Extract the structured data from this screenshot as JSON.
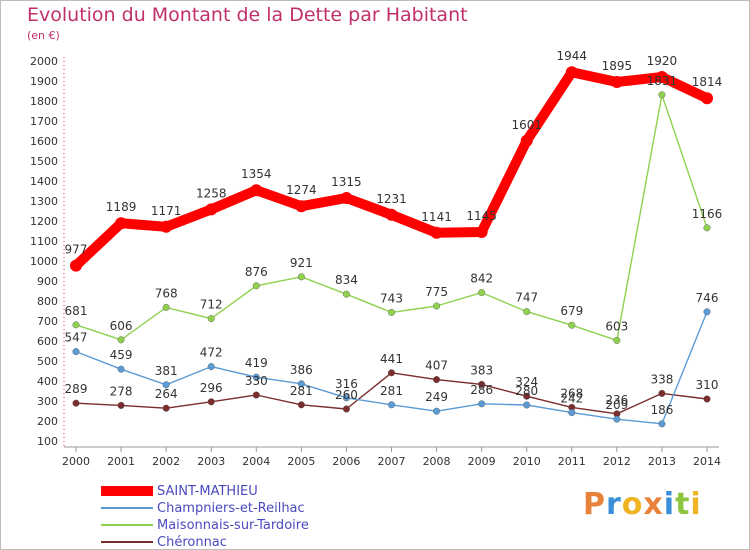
{
  "title": "Evolution du Montant de la Dette par Habitant",
  "subtitle": "(en €)",
  "brand": {
    "text": "Proxiti",
    "colors": [
      "#e8813a",
      "#3a8fd8",
      "#f0b323",
      "#e8813a",
      "#3a8fd8",
      "#8cc63f",
      "#f0b323"
    ]
  },
  "chart_data": {
    "type": "line",
    "x": [
      "2000",
      "2001",
      "2002",
      "2003",
      "2004",
      "2005",
      "2006",
      "2007",
      "2008",
      "2009",
      "2010",
      "2011",
      "2012",
      "2013",
      "2014"
    ],
    "ylim": [
      100,
      2000
    ],
    "yticks": [
      100,
      200,
      300,
      400,
      500,
      600,
      700,
      800,
      900,
      1000,
      1100,
      1200,
      1300,
      1400,
      1500,
      1600,
      1700,
      1800,
      1900,
      2000
    ],
    "grid": false,
    "legend_position": "bottom-left",
    "series": [
      {
        "name": "SAINT-MATHIEU",
        "color": "#ff0000",
        "values": [
          977,
          1189,
          1171,
          1258,
          1354,
          1274,
          1315,
          1231,
          1141,
          1145,
          1601,
          1944,
          1895,
          1920,
          1814
        ]
      },
      {
        "name": "Champniers-et-Reilhac",
        "color": "#5b9bd5",
        "values": [
          547,
          459,
          381,
          472,
          419,
          386,
          316,
          281,
          249,
          286,
          280,
          242,
          209,
          186,
          746
        ]
      },
      {
        "name": "Maisonnais-sur-Tardoire",
        "color": "#8fd14f",
        "values": [
          681,
          606,
          768,
          712,
          876,
          921,
          834,
          743,
          775,
          842,
          747,
          679,
          603,
          1831,
          1166
        ]
      },
      {
        "name": "Chéronnac",
        "color": "#7b2c2c",
        "values": [
          289,
          278,
          264,
          296,
          330,
          281,
          260,
          441,
          407,
          383,
          324,
          268,
          236,
          338,
          310
        ]
      }
    ]
  }
}
